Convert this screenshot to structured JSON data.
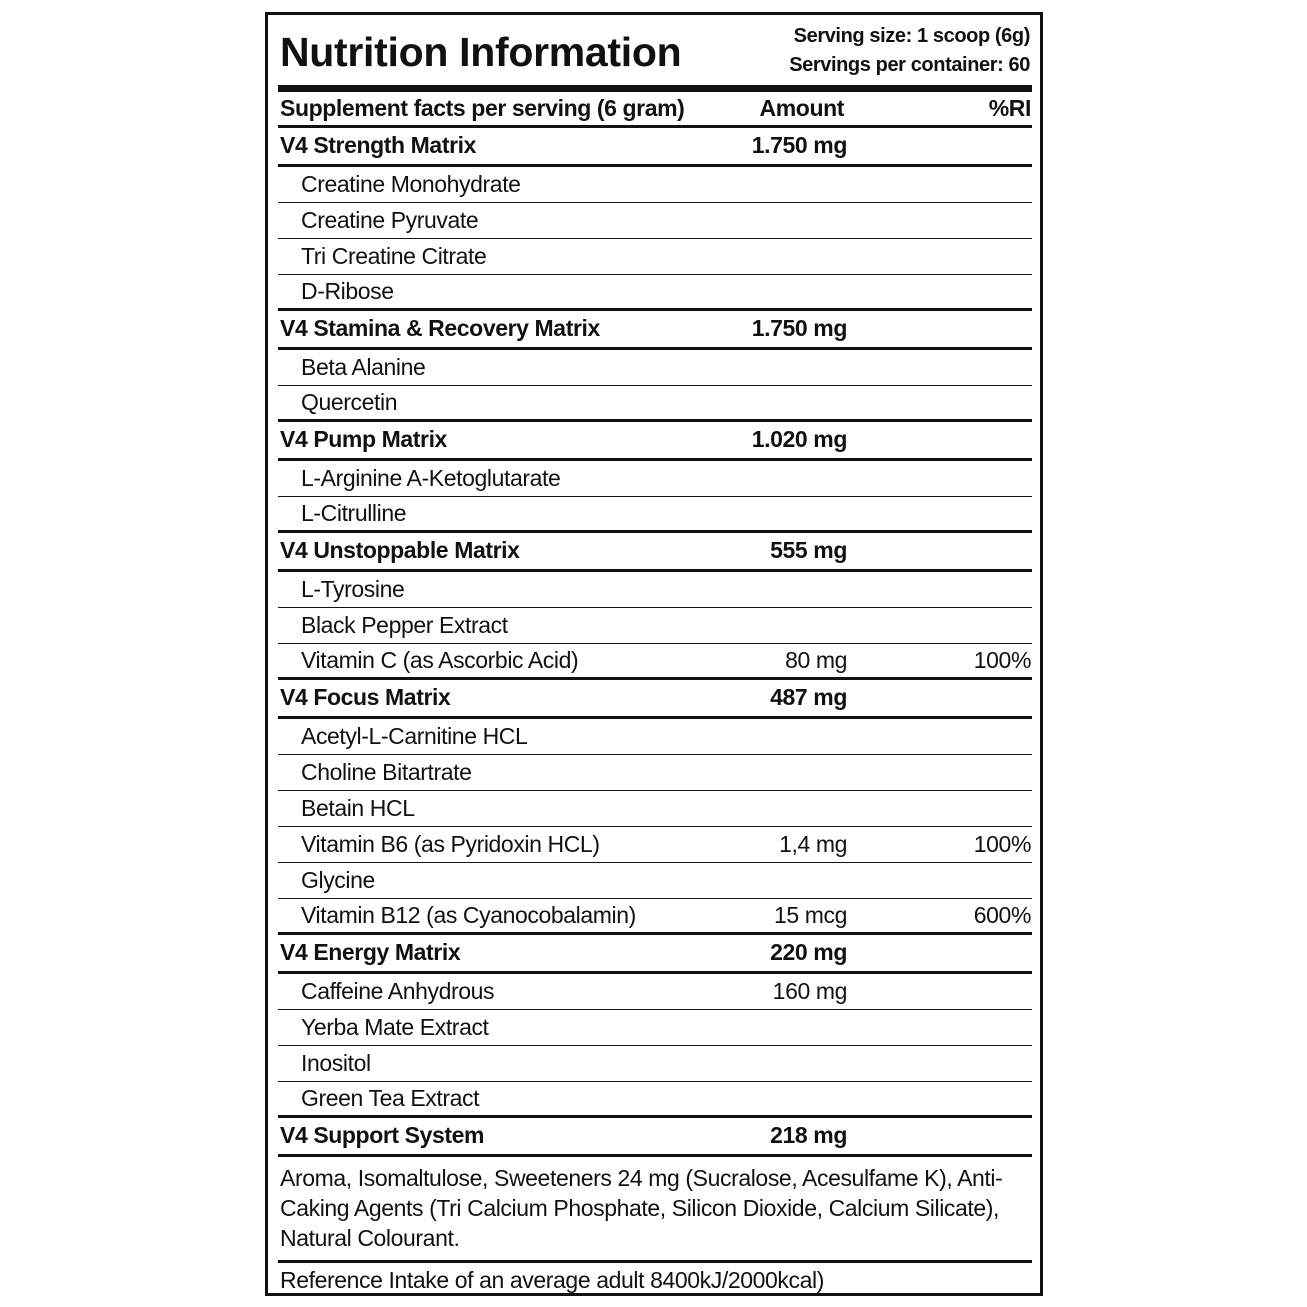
{
  "title": "Nutrition Information",
  "serving_size": "Serving size: 1 scoop (6g)",
  "servings_per_container": "Servings per container: 60",
  "header": {
    "label": "Supplement facts per serving (6 gram)",
    "amount": "Amount",
    "ri": "%RI"
  },
  "groups": [
    {
      "name": "V4 Strength Matrix",
      "amount": "1.750 mg",
      "items": [
        {
          "name": "Creatine Monohydrate"
        },
        {
          "name": "Creatine Pyruvate"
        },
        {
          "name": "Tri Creatine Citrate"
        },
        {
          "name": "D-Ribose"
        }
      ]
    },
    {
      "name": "V4 Stamina & Recovery Matrix",
      "amount": "1.750 mg",
      "items": [
        {
          "name": "Beta Alanine"
        },
        {
          "name": "Quercetin"
        }
      ]
    },
    {
      "name": "V4 Pump Matrix",
      "amount": "1.020 mg",
      "items": [
        {
          "name": "L-Arginine A-Ketoglutarate"
        },
        {
          "name": "L-Citrulline"
        }
      ]
    },
    {
      "name": "V4 Unstoppable Matrix",
      "amount": "555 mg",
      "items": [
        {
          "name": "L-Tyrosine"
        },
        {
          "name": "Black Pepper Extract"
        },
        {
          "name": "Vitamin C (as Ascorbic Acid)",
          "amount": "80 mg",
          "ri": "100%"
        }
      ]
    },
    {
      "name": "V4 Focus Matrix",
      "amount": "487 mg",
      "items": [
        {
          "name": "Acetyl-L-Carnitine HCL"
        },
        {
          "name": "Choline Bitartrate"
        },
        {
          "name": "Betain HCL"
        },
        {
          "name": "Vitamin B6 (as Pyridoxin HCL)",
          "amount": "1,4 mg",
          "ri": "100%"
        },
        {
          "name": "Glycine"
        },
        {
          "name": "Vitamin B12 (as Cyanocobalamin)",
          "amount": "15 mcg",
          "ri": "600%"
        }
      ]
    },
    {
      "name": "V4 Energy Matrix",
      "amount": "220 mg",
      "items": [
        {
          "name": "Caffeine Anhydrous",
          "amount": "160 mg"
        },
        {
          "name": "Yerba Mate Extract"
        },
        {
          "name": "Inositol"
        },
        {
          "name": "Green Tea Extract"
        }
      ]
    },
    {
      "name": "V4 Support System",
      "amount": "218 mg",
      "items": []
    }
  ],
  "ingredients": "Aroma, Isomaltulose, Sweeteners 24 mg (Sucralose, Acesulfame K), Anti-Caking Agents (Tri Calcium Phosphate, Silicon Dioxide, Calcium Silicate), Natural Colourant.",
  "reference": "Reference Intake of an average adult 8400kJ/2000kcal)"
}
